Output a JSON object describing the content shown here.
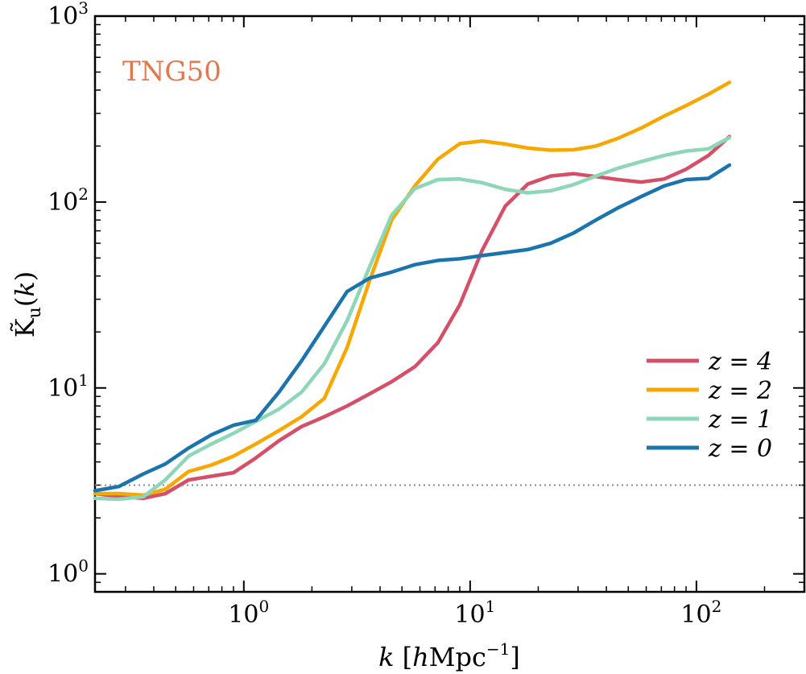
{
  "chart_data": {
    "type": "line",
    "title": "",
    "xlabel": "k [hMpc^-1]",
    "ylabel": "K̃u(k)",
    "xscale": "log",
    "yscale": "log",
    "xlim": [
      0.22,
      300
    ],
    "ylim": [
      0.8,
      1000
    ],
    "grid": false,
    "legend_position": "right",
    "annotation": {
      "text": "TNG50",
      "color": "#E07850"
    },
    "reference_line": {
      "y": 3.0,
      "style": "dotted",
      "color": "#888888"
    },
    "x_ticks": [
      {
        "value": 1,
        "base": "10",
        "exp": "0"
      },
      {
        "value": 10,
        "base": "10",
        "exp": "1"
      },
      {
        "value": 100,
        "base": "10",
        "exp": "2"
      }
    ],
    "y_ticks": [
      {
        "value": 1,
        "base": "10",
        "exp": "0"
      },
      {
        "value": 10,
        "base": "10",
        "exp": "1"
      },
      {
        "value": 100,
        "base": "10",
        "exp": "2"
      },
      {
        "value": 1000,
        "base": "10",
        "exp": "3"
      }
    ],
    "series": [
      {
        "name": "z = 4",
        "color": "#D45069",
        "x": [
          0.22,
          0.28,
          0.36,
          0.45,
          0.57,
          0.72,
          0.9,
          1.13,
          1.43,
          1.8,
          2.27,
          2.86,
          3.6,
          4.5,
          5.7,
          7.2,
          9.0,
          11.3,
          14.3,
          18.0,
          22.7,
          28.6,
          36,
          45,
          57,
          72,
          90,
          113,
          140
        ],
        "y": [
          2.7,
          2.6,
          2.55,
          2.7,
          3.2,
          3.35,
          3.5,
          4.2,
          5.2,
          6.2,
          7.0,
          8.0,
          9.3,
          10.8,
          13.0,
          17.5,
          28,
          55,
          95,
          125,
          138,
          142,
          137,
          132,
          128,
          133,
          150,
          178,
          225
        ]
      },
      {
        "name": "z = 2",
        "color": "#F7A800",
        "x": [
          0.22,
          0.28,
          0.36,
          0.45,
          0.57,
          0.72,
          0.9,
          1.13,
          1.43,
          1.8,
          2.27,
          2.86,
          3.6,
          4.5,
          5.7,
          7.2,
          9.0,
          11.3,
          14.3,
          18.0,
          22.7,
          28.6,
          36,
          45,
          57,
          72,
          90,
          113,
          140
        ],
        "y": [
          2.7,
          2.7,
          2.65,
          2.85,
          3.55,
          3.85,
          4.3,
          5.0,
          5.9,
          7.0,
          8.8,
          16.5,
          38,
          80,
          122,
          170,
          206,
          213,
          205,
          195,
          190,
          191,
          200,
          220,
          250,
          290,
          330,
          380,
          440
        ]
      },
      {
        "name": "z = 1",
        "color": "#8ED6B8",
        "x": [
          0.22,
          0.28,
          0.36,
          0.45,
          0.57,
          0.72,
          0.9,
          1.13,
          1.43,
          1.8,
          2.27,
          2.86,
          3.6,
          4.5,
          5.7,
          7.2,
          9.0,
          11.3,
          14.3,
          18.0,
          22.7,
          28.6,
          36,
          45,
          57,
          72,
          90,
          113,
          140
        ],
        "y": [
          2.55,
          2.52,
          2.6,
          3.2,
          4.3,
          5.0,
          5.7,
          6.6,
          7.7,
          9.5,
          13.5,
          23,
          45,
          85,
          118,
          132,
          133,
          127,
          117,
          112,
          115,
          124,
          138,
          152,
          165,
          178,
          188,
          193,
          222
        ]
      },
      {
        "name": "z = 0",
        "color": "#1B74AC",
        "x": [
          0.22,
          0.28,
          0.36,
          0.45,
          0.57,
          0.72,
          0.9,
          1.13,
          1.43,
          1.8,
          2.27,
          2.86,
          3.6,
          4.5,
          5.7,
          7.2,
          9.0,
          11.3,
          14.3,
          18.0,
          22.7,
          28.6,
          36,
          45,
          57,
          72,
          90,
          113,
          140
        ],
        "y": [
          2.8,
          2.95,
          3.45,
          3.9,
          4.75,
          5.6,
          6.3,
          6.7,
          9.5,
          14,
          21.5,
          33,
          39,
          42,
          46,
          48.5,
          49.5,
          51.5,
          53.5,
          55.5,
          60,
          68,
          80,
          93,
          107,
          122,
          132,
          134,
          158
        ]
      }
    ]
  }
}
